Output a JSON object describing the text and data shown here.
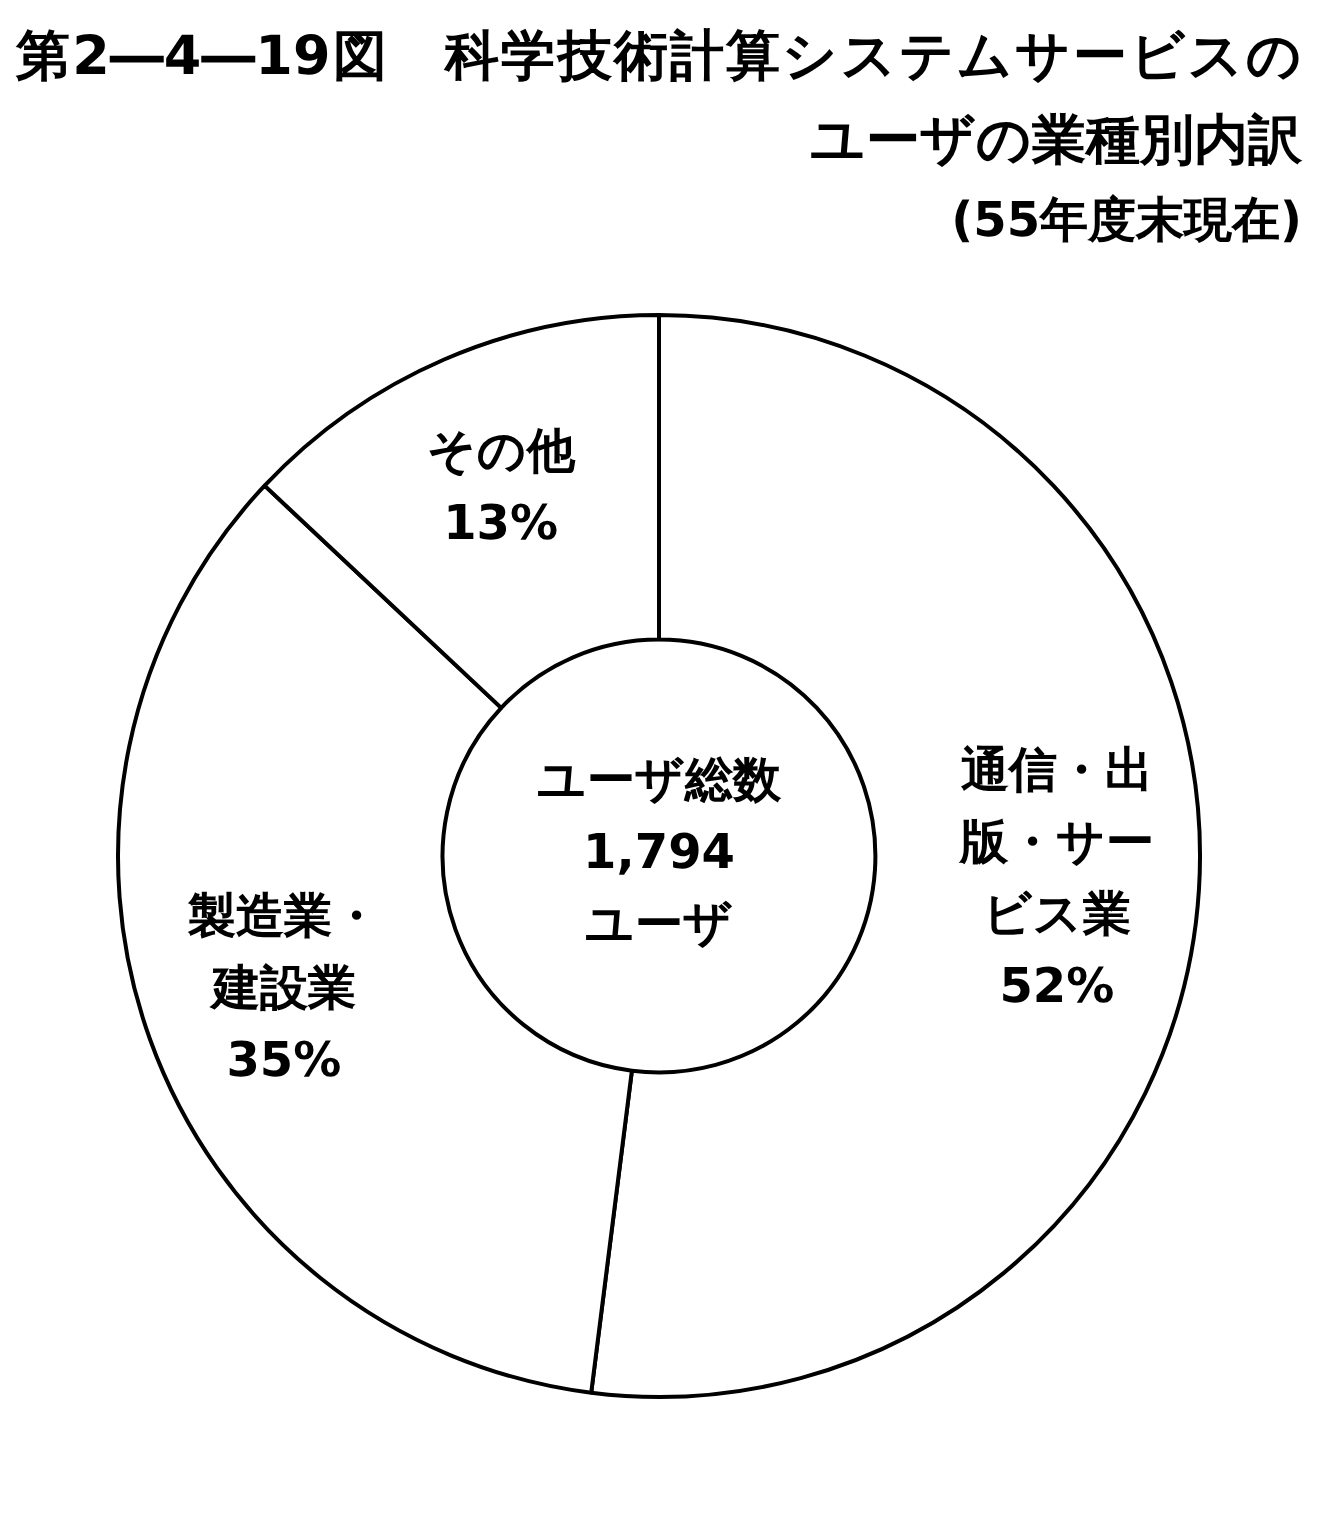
{
  "chart_data": {
    "type": "donut",
    "title": "第2―4―19図　科学技術計算システムサービスのユーザの業種別内訳",
    "subtitle": "(55年度末現在)",
    "categories": [
      "通信・出版・サービス業",
      "製造業・建設業",
      "その他"
    ],
    "values": [
      52,
      35,
      13
    ],
    "value_labels": [
      "52%",
      "35%",
      "13%"
    ],
    "colors": [
      "#ffffff",
      "#ffffff",
      "#ffffff"
    ],
    "annotations": [
      "ユーザ総数",
      "1,794",
      "ユーザ"
    ],
    "legend": false
  }
}
